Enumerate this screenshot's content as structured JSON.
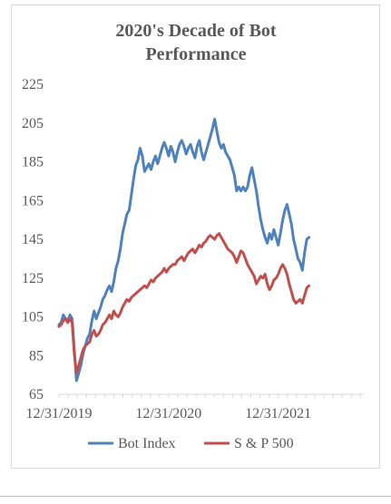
{
  "chart_data": {
    "type": "line",
    "title": "2020's Decade of Bot Performance",
    "title_lines": [
      "2020's Decade of Bot",
      "Performance"
    ],
    "xlabel": "",
    "ylabel": "",
    "ylim": [
      65,
      225
    ],
    "yticks": [
      65,
      85,
      105,
      125,
      145,
      165,
      185,
      205,
      225
    ],
    "x_tick_labels": [
      "12/31/2019",
      "12/31/2020",
      "12/31/2021"
    ],
    "x_range_years": [
      0,
      2.78
    ],
    "x_tick_positions_years": [
      0,
      1,
      2
    ],
    "grid": false,
    "legend": "bottom",
    "series": [
      {
        "name": "Bot Index",
        "color": "#4f81bd",
        "points": [
          [
            0.0,
            101
          ],
          [
            0.02,
            102
          ],
          [
            0.04,
            106
          ],
          [
            0.06,
            104
          ],
          [
            0.08,
            103
          ],
          [
            0.1,
            106
          ],
          [
            0.12,
            104
          ],
          [
            0.14,
            88
          ],
          [
            0.16,
            72
          ],
          [
            0.18,
            76
          ],
          [
            0.2,
            80
          ],
          [
            0.22,
            86
          ],
          [
            0.24,
            90
          ],
          [
            0.26,
            94
          ],
          [
            0.28,
            96
          ],
          [
            0.3,
            103
          ],
          [
            0.32,
            108
          ],
          [
            0.34,
            104
          ],
          [
            0.36,
            107
          ],
          [
            0.38,
            110
          ],
          [
            0.4,
            114
          ],
          [
            0.42,
            116
          ],
          [
            0.44,
            119
          ],
          [
            0.46,
            121
          ],
          [
            0.48,
            118
          ],
          [
            0.5,
            123
          ],
          [
            0.52,
            130
          ],
          [
            0.54,
            134
          ],
          [
            0.56,
            140
          ],
          [
            0.58,
            148
          ],
          [
            0.6,
            153
          ],
          [
            0.62,
            158
          ],
          [
            0.64,
            160
          ],
          [
            0.66,
            168
          ],
          [
            0.68,
            176
          ],
          [
            0.7,
            183
          ],
          [
            0.72,
            186
          ],
          [
            0.74,
            192
          ],
          [
            0.76,
            188
          ],
          [
            0.78,
            180
          ],
          [
            0.8,
            182
          ],
          [
            0.82,
            184
          ],
          [
            0.84,
            181
          ],
          [
            0.86,
            185
          ],
          [
            0.88,
            188
          ],
          [
            0.9,
            184
          ],
          [
            0.92,
            188
          ],
          [
            0.94,
            192
          ],
          [
            0.96,
            195
          ],
          [
            0.98,
            192
          ],
          [
            1.0,
            188
          ],
          [
            1.02,
            193
          ],
          [
            1.04,
            190
          ],
          [
            1.06,
            185
          ],
          [
            1.08,
            190
          ],
          [
            1.1,
            194
          ],
          [
            1.12,
            196
          ],
          [
            1.14,
            193
          ],
          [
            1.16,
            189
          ],
          [
            1.18,
            192
          ],
          [
            1.2,
            194
          ],
          [
            1.22,
            190
          ],
          [
            1.24,
            187
          ],
          [
            1.26,
            193
          ],
          [
            1.28,
            196
          ],
          [
            1.3,
            190
          ],
          [
            1.32,
            186
          ],
          [
            1.34,
            190
          ],
          [
            1.36,
            194
          ],
          [
            1.38,
            198
          ],
          [
            1.4,
            202
          ],
          [
            1.42,
            207
          ],
          [
            1.44,
            201
          ],
          [
            1.46,
            195
          ],
          [
            1.48,
            192
          ],
          [
            1.5,
            194
          ],
          [
            1.52,
            190
          ],
          [
            1.54,
            188
          ],
          [
            1.56,
            186
          ],
          [
            1.58,
            182
          ],
          [
            1.6,
            178
          ],
          [
            1.62,
            170
          ],
          [
            1.64,
            172
          ],
          [
            1.66,
            170
          ],
          [
            1.68,
            172
          ],
          [
            1.7,
            170
          ],
          [
            1.72,
            172
          ],
          [
            1.74,
            178
          ],
          [
            1.76,
            182
          ],
          [
            1.78,
            176
          ],
          [
            1.8,
            170
          ],
          [
            1.82,
            162
          ],
          [
            1.84,
            155
          ],
          [
            1.86,
            150
          ],
          [
            1.88,
            146
          ],
          [
            1.9,
            143
          ],
          [
            1.92,
            148
          ],
          [
            1.94,
            145
          ],
          [
            1.96,
            150
          ],
          [
            1.98,
            146
          ],
          [
            2.0,
            142
          ],
          [
            2.02,
            148
          ],
          [
            2.04,
            155
          ],
          [
            2.06,
            160
          ],
          [
            2.08,
            163
          ],
          [
            2.1,
            158
          ],
          [
            2.12,
            153
          ],
          [
            2.14,
            145
          ],
          [
            2.16,
            140
          ],
          [
            2.18,
            135
          ],
          [
            2.2,
            133
          ],
          [
            2.22,
            129
          ],
          [
            2.24,
            138
          ],
          [
            2.26,
            145
          ],
          [
            2.28,
            146
          ]
        ]
      },
      {
        "name": "S & P 500",
        "color": "#c0504d",
        "points": [
          [
            0.0,
            100
          ],
          [
            0.02,
            101
          ],
          [
            0.04,
            103
          ],
          [
            0.06,
            104
          ],
          [
            0.08,
            102
          ],
          [
            0.1,
            104
          ],
          [
            0.12,
            102
          ],
          [
            0.14,
            86
          ],
          [
            0.16,
            76
          ],
          [
            0.18,
            80
          ],
          [
            0.2,
            84
          ],
          [
            0.22,
            88
          ],
          [
            0.24,
            90
          ],
          [
            0.26,
            91
          ],
          [
            0.28,
            92
          ],
          [
            0.3,
            96
          ],
          [
            0.32,
            98
          ],
          [
            0.34,
            95
          ],
          [
            0.36,
            96
          ],
          [
            0.38,
            98
          ],
          [
            0.4,
            101
          ],
          [
            0.42,
            102
          ],
          [
            0.44,
            104
          ],
          [
            0.46,
            106
          ],
          [
            0.48,
            104
          ],
          [
            0.5,
            108
          ],
          [
            0.52,
            106
          ],
          [
            0.54,
            105
          ],
          [
            0.56,
            107
          ],
          [
            0.58,
            110
          ],
          [
            0.6,
            112
          ],
          [
            0.62,
            114
          ],
          [
            0.64,
            113
          ],
          [
            0.66,
            115
          ],
          [
            0.68,
            116
          ],
          [
            0.7,
            117
          ],
          [
            0.72,
            118
          ],
          [
            0.74,
            119
          ],
          [
            0.76,
            120
          ],
          [
            0.78,
            121
          ],
          [
            0.8,
            120
          ],
          [
            0.82,
            122
          ],
          [
            0.84,
            124
          ],
          [
            0.86,
            123
          ],
          [
            0.88,
            125
          ],
          [
            0.9,
            126
          ],
          [
            0.92,
            127
          ],
          [
            0.94,
            128
          ],
          [
            0.96,
            130
          ],
          [
            0.98,
            128
          ],
          [
            1.0,
            130
          ],
          [
            1.02,
            131
          ],
          [
            1.04,
            132
          ],
          [
            1.06,
            132
          ],
          [
            1.08,
            134
          ],
          [
            1.1,
            135
          ],
          [
            1.12,
            136
          ],
          [
            1.14,
            134
          ],
          [
            1.16,
            136
          ],
          [
            1.18,
            138
          ],
          [
            1.2,
            139
          ],
          [
            1.22,
            140
          ],
          [
            1.24,
            138
          ],
          [
            1.26,
            140
          ],
          [
            1.28,
            142
          ],
          [
            1.3,
            141
          ],
          [
            1.32,
            143
          ],
          [
            1.34,
            144
          ],
          [
            1.36,
            146
          ],
          [
            1.38,
            147
          ],
          [
            1.4,
            146
          ],
          [
            1.42,
            145
          ],
          [
            1.44,
            147
          ],
          [
            1.46,
            148
          ],
          [
            1.48,
            146
          ],
          [
            1.5,
            144
          ],
          [
            1.52,
            142
          ],
          [
            1.54,
            140
          ],
          [
            1.56,
            139
          ],
          [
            1.58,
            138
          ],
          [
            1.6,
            136
          ],
          [
            1.62,
            133
          ],
          [
            1.64,
            136
          ],
          [
            1.66,
            139
          ],
          [
            1.68,
            138
          ],
          [
            1.7,
            135
          ],
          [
            1.72,
            132
          ],
          [
            1.74,
            130
          ],
          [
            1.76,
            128
          ],
          [
            1.78,
            126
          ],
          [
            1.8,
            122
          ],
          [
            1.82,
            124
          ],
          [
            1.84,
            126
          ],
          [
            1.86,
            125
          ],
          [
            1.88,
            127
          ],
          [
            1.9,
            122
          ],
          [
            1.92,
            119
          ],
          [
            1.94,
            121
          ],
          [
            1.96,
            124
          ],
          [
            1.98,
            125
          ],
          [
            2.0,
            127
          ],
          [
            2.02,
            130
          ],
          [
            2.04,
            132
          ],
          [
            2.06,
            130
          ],
          [
            2.08,
            127
          ],
          [
            2.1,
            122
          ],
          [
            2.12,
            118
          ],
          [
            2.14,
            114
          ],
          [
            2.16,
            112
          ],
          [
            2.18,
            113
          ],
          [
            2.2,
            114
          ],
          [
            2.22,
            112
          ],
          [
            2.24,
            116
          ],
          [
            2.26,
            120
          ],
          [
            2.28,
            121
          ]
        ]
      }
    ]
  }
}
